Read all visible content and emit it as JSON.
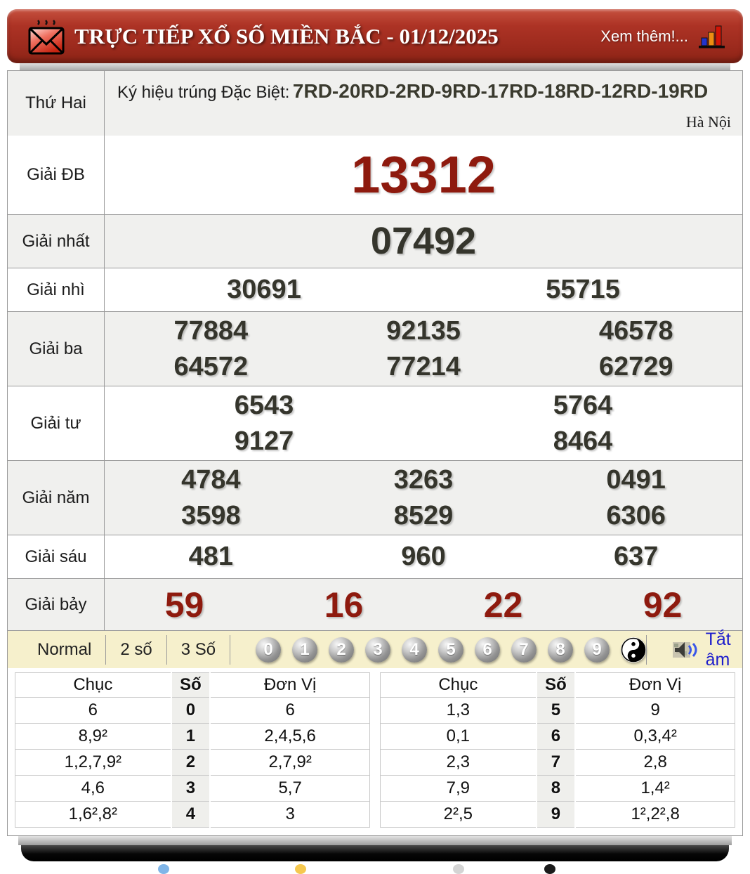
{
  "header": {
    "title": "TRỰC TIẾP XỔ SỐ MIỀN BẮC - 01/12/2025",
    "more_label": "Xem thêm!..."
  },
  "info": {
    "day": "Thứ Hai",
    "symbol_label": "Ký hiệu trúng Đặc Biệt:",
    "symbol_codes": "7RD-20RD-2RD-9RD-17RD-18RD-12RD-19RD",
    "province": "Hà Nội"
  },
  "prizes": [
    {
      "label": "Giải ĐB",
      "kind": "db",
      "rows": [
        [
          "13312"
        ]
      ]
    },
    {
      "label": "Giải nhất",
      "kind": "nhat",
      "rows": [
        [
          "07492"
        ]
      ]
    },
    {
      "label": "Giải nhì",
      "kind": "normal",
      "rows": [
        [
          "30691",
          "55715"
        ]
      ]
    },
    {
      "label": "Giải ba",
      "kind": "normal",
      "rows": [
        [
          "77884",
          "92135",
          "46578"
        ],
        [
          "64572",
          "77214",
          "62729"
        ]
      ]
    },
    {
      "label": "Giải tư",
      "kind": "normal",
      "rows": [
        [
          "6543",
          "5764"
        ],
        [
          "9127",
          "8464"
        ]
      ]
    },
    {
      "label": "Giải năm",
      "kind": "normal",
      "rows": [
        [
          "4784",
          "3263",
          "0491"
        ],
        [
          "3598",
          "8529",
          "6306"
        ]
      ]
    },
    {
      "label": "Giải sáu",
      "kind": "normal",
      "rows": [
        [
          "481",
          "960",
          "637"
        ]
      ]
    },
    {
      "label": "Giải bảy",
      "kind": "bay",
      "rows": [
        [
          "59",
          "16",
          "22",
          "92"
        ]
      ]
    }
  ],
  "toolbar": {
    "modes": [
      "Normal",
      "2 số",
      "3 Số"
    ],
    "balls": [
      "0",
      "1",
      "2",
      "3",
      "4",
      "5",
      "6",
      "7",
      "8",
      "9"
    ],
    "mute_label": "Tắt âm"
  },
  "stats": {
    "tables": [
      {
        "headers": [
          "Chục",
          "Số",
          "Đơn Vị"
        ],
        "rows": [
          [
            "6",
            "0",
            "6"
          ],
          [
            "8,9²",
            "1",
            "2,4,5,6"
          ],
          [
            "1,2,7,9²",
            "2",
            "2,7,9²"
          ],
          [
            "4,6",
            "3",
            "5,7"
          ],
          [
            "1,6²,8²",
            "4",
            "3"
          ]
        ]
      },
      {
        "headers": [
          "Chục",
          "Số",
          "Đơn Vị"
        ],
        "rows": [
          [
            "1,3",
            "5",
            "9"
          ],
          [
            "0,1",
            "6",
            "0,3,4²"
          ],
          [
            "2,3",
            "7",
            "2,8"
          ],
          [
            "7,9",
            "8",
            "1,4²"
          ],
          [
            "2²,5",
            "9",
            "1²,2²,8"
          ]
        ]
      }
    ]
  },
  "colors": {
    "header_red": "#9c2a1d",
    "number_red": "#8e1a0e",
    "number_dark": "#35352c",
    "toolbar_cream": "#f6f0cc",
    "mute_blue": "#1d1dcc"
  }
}
